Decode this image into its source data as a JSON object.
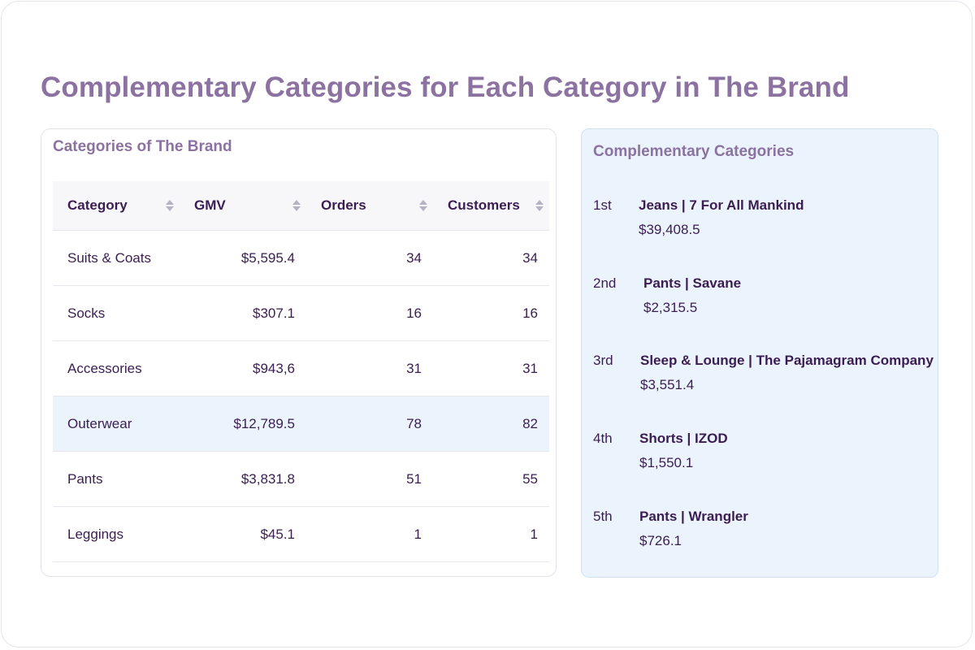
{
  "page": {
    "title": "Complementary Categories for Each Category in The Brand"
  },
  "left_panel": {
    "title": "Categories of The Brand",
    "columns": [
      "Category",
      "GMV",
      "Orders",
      "Customers"
    ],
    "rows": [
      {
        "category": "Suits & Coats",
        "gmv": "$5,595.4",
        "orders": "34",
        "customers": "34",
        "selected": false
      },
      {
        "category": "Socks",
        "gmv": "$307.1",
        "orders": "16",
        "customers": "16",
        "selected": false
      },
      {
        "category": "Accessories",
        "gmv": "$943,6",
        "orders": "31",
        "customers": "31",
        "selected": false
      },
      {
        "category": "Outerwear",
        "gmv": "$12,789.5",
        "orders": "78",
        "customers": "82",
        "selected": true
      },
      {
        "category": "Pants",
        "gmv": "$3,831.8",
        "orders": "51",
        "customers": "55",
        "selected": false
      },
      {
        "category": "Leggings",
        "gmv": "$45.1",
        "orders": "1",
        "customers": "1",
        "selected": false
      }
    ]
  },
  "right_panel": {
    "title": "Complementary Categories",
    "items": [
      {
        "rank": "1st",
        "name": "Jeans | 7 For All Mankind",
        "value": "$39,408.5"
      },
      {
        "rank": "2nd",
        "name": "Pants | Savane",
        "value": "$2,315.5"
      },
      {
        "rank": "3rd",
        "name": "Sleep & Lounge | The Pajamagram Company",
        "value": "$3,551.4"
      },
      {
        "rank": "4th",
        "name": "Shorts | IZOD",
        "value": "$1,550.1"
      },
      {
        "rank": "5th",
        "name": "Pants | Wrangler",
        "value": "$726.1"
      }
    ]
  },
  "colors": {
    "title_purple": "#8b72a0",
    "text_dark": "#3b1d52",
    "highlight_bg": "#ebf4fd",
    "sort_icon": "#b3b3c3"
  }
}
